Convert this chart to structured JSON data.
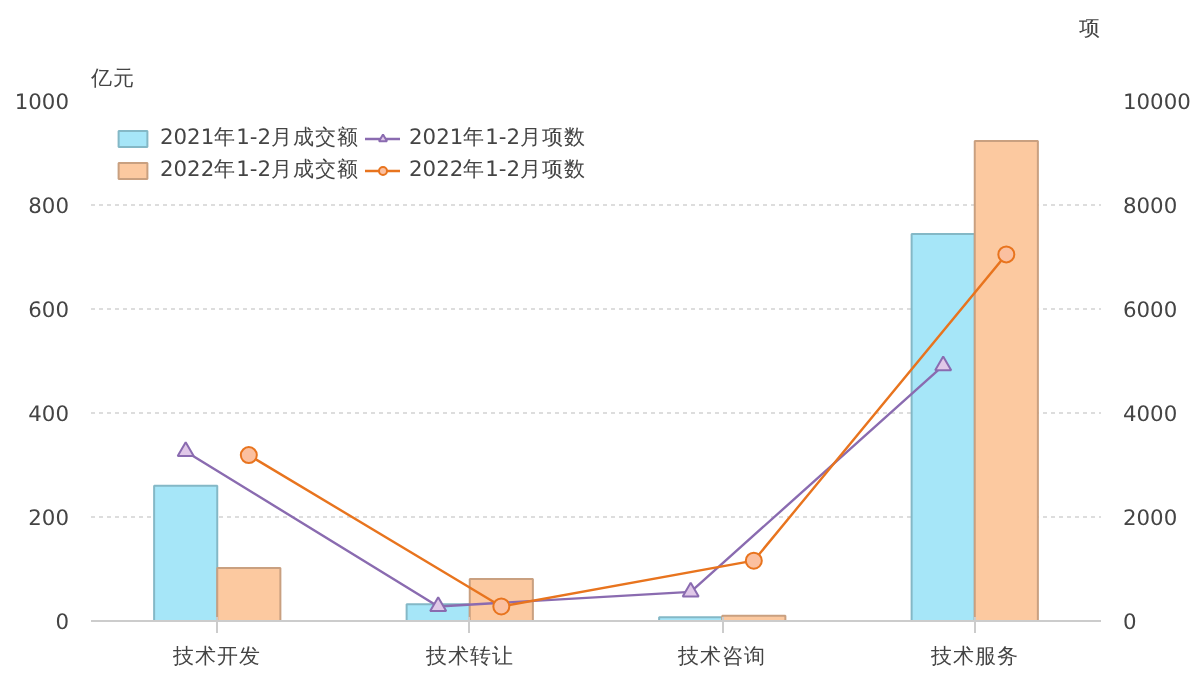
{
  "chart_data": {
    "type": "bar",
    "categories": [
      "技术开发",
      "技术转让",
      "技术咨询",
      "技术服务"
    ],
    "ylabel": "亿元",
    "y2label": "项",
    "ylim": [
      0,
      1000
    ],
    "yticks": [
      0,
      200,
      400,
      600,
      800,
      1000
    ],
    "y2lim": [
      0,
      10000
    ],
    "y2ticks": [
      0,
      2000,
      4000,
      6000,
      8000,
      10000
    ],
    "grid": "y",
    "legend": "top left",
    "series": [
      {
        "name": "2021年1-2月成交额",
        "color": "#a6e6f8",
        "values": [
          260,
          32,
          7,
          744
        ]
      },
      {
        "name": "2022年1-2月成交额",
        "color": "#fcc9a0",
        "values": [
          102,
          81,
          10,
          923
        ]
      },
      {
        "name": "2021年1-2月项数",
        "type": "line",
        "axis": "y2",
        "marker": "triangle",
        "color": "#8a6bb0",
        "values": [
          3260,
          280,
          560,
          4910
        ]
      },
      {
        "name": "2022年1-2月项数",
        "type": "line",
        "axis": "y2",
        "marker": "circle",
        "color": "#e8741e",
        "values": [
          3190,
          280,
          1160,
          7050
        ]
      }
    ]
  }
}
